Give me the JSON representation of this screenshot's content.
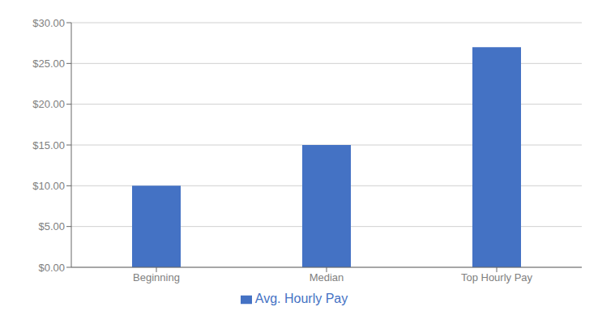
{
  "chart_data": {
    "type": "bar",
    "categories": [
      "Beginning",
      "Median",
      "Top Hourly Pay"
    ],
    "series": [
      {
        "name": "Avg. Hourly Pay",
        "color": "#4472C4",
        "values": [
          10.0,
          15.0,
          27.0
        ]
      }
    ],
    "ylim": [
      0,
      30
    ],
    "yticks": [
      {
        "value": 0,
        "label": "$0.00"
      },
      {
        "value": 5,
        "label": "$5.00"
      },
      {
        "value": 10,
        "label": "$10.00"
      },
      {
        "value": 15,
        "label": "$15.00"
      },
      {
        "value": 20,
        "label": "$20.00"
      },
      {
        "value": 25,
        "label": "$25.00"
      },
      {
        "value": 30,
        "label": "$30.00"
      }
    ],
    "grid": true,
    "legend": "bottom"
  }
}
